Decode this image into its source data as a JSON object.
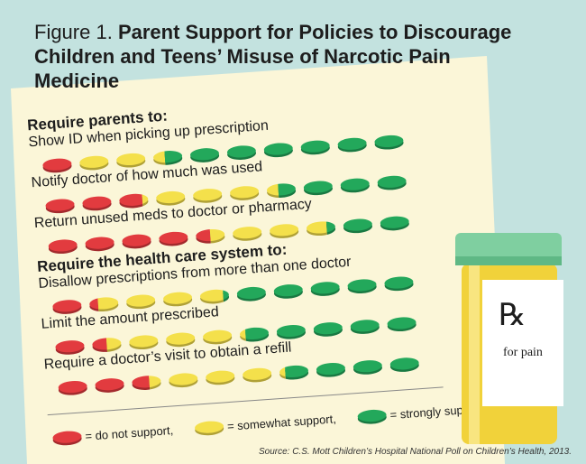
{
  "chart_data": {
    "type": "pictogram",
    "figure_label": "Figure 1.",
    "title": "Parent Support for Policies to Discourage Children and Teens’ Misuse of Narcotic Pain Medicine",
    "groups": [
      {
        "name": "Require parents to:",
        "categories": [
          "Show ID when picking up prescription",
          "Notify doctor of how much was used",
          "Return unused meds to doctor or pharmacy"
        ]
      },
      {
        "name": "Require the health care system to:",
        "categories": [
          "Disallow prescriptions from more than one doctor",
          "Limit the amount prescribed",
          "Require a doctor’s visit to obtain a refill"
        ]
      }
    ],
    "series": [
      {
        "name": "= do not support,",
        "color": "#e23b3f",
        "values": [
          10,
          28,
          45,
          13,
          15,
          26
        ]
      },
      {
        "name": "= somewhat support,",
        "color": "#f4e04b",
        "values": [
          24,
          36,
          32,
          35,
          37,
          36
        ]
      },
      {
        "name": "= strongly support",
        "color": "#23a85b",
        "values": [
          66,
          36,
          23,
          52,
          48,
          38
        ]
      }
    ],
    "bottle": {
      "rx": "℞",
      "label": "for pain"
    },
    "source": "Source: C.S. Mott Children’s Hospital National Poll on Children’s Health, 2013."
  }
}
